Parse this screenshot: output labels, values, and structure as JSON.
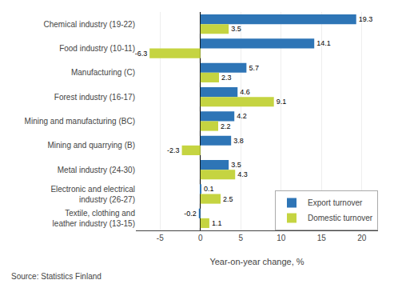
{
  "chart_data": {
    "type": "bar",
    "orientation": "horizontal",
    "categories": [
      "Chemical industry (19-22)",
      "Food industry (10-11)",
      "Manufacturing (C)",
      "Forest industry (16-17)",
      "Mining and manufacturing (BC)",
      "Mining and quarrying (B)",
      "Metal industry (24-30)",
      "Electronic and electrical\nindustry (26-27)",
      "Textile, clothing and\nleather industry (13-15)"
    ],
    "series": [
      {
        "name": "Export turnover",
        "color": "#2E75B6",
        "values": [
          19.3,
          14.1,
          5.7,
          4.6,
          4.2,
          3.8,
          3.5,
          0.1,
          -0.2
        ]
      },
      {
        "name": "Domestic turnover",
        "color": "#C5D441",
        "values": [
          3.5,
          -6.3,
          2.3,
          9.1,
          2.2,
          -2.3,
          4.3,
          2.5,
          1.1
        ]
      }
    ],
    "xlabel": "Year-on-year change, %",
    "xlim": [
      -8,
      22
    ],
    "xticks": [
      -5,
      0,
      5,
      10,
      15,
      20
    ],
    "grid": true,
    "data_labels": true,
    "legend": "lower right",
    "annotations": [
      "Source: Statistics Finland"
    ]
  }
}
